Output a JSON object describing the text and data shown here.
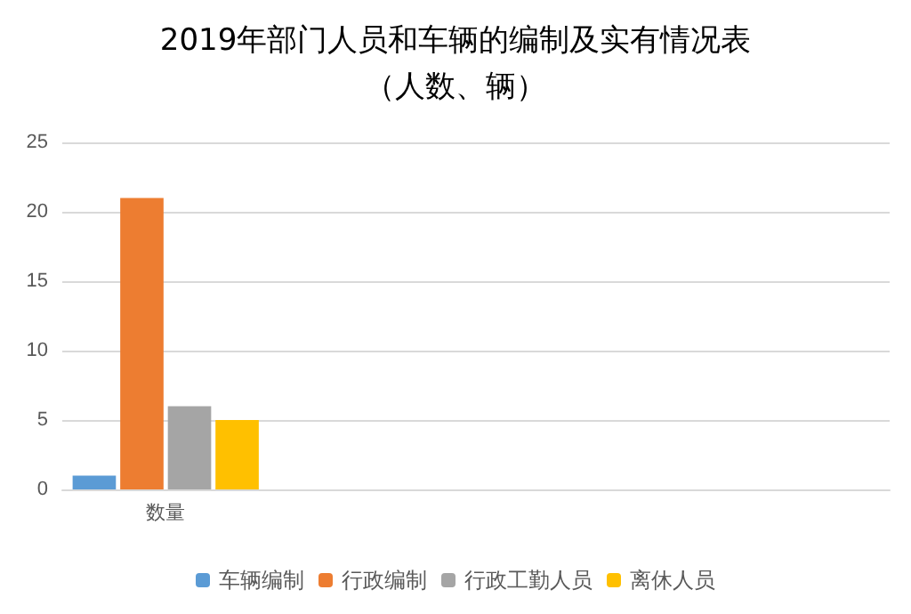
{
  "chart_data": {
    "type": "bar",
    "title": "2019年部门人员和车辆的编制及实有情况表",
    "subtitle": "（人数、辆）",
    "categories": [
      "数量",
      null,
      null,
      null
    ],
    "series": [
      {
        "name": "车辆编制",
        "color": "#5b9bd5",
        "values": [
          1,
          null,
          null,
          null
        ]
      },
      {
        "name": "行政编制",
        "color": "#ed7d31",
        "values": [
          21,
          null,
          null,
          null
        ]
      },
      {
        "name": "行政工勤人员",
        "color": "#a5a5a5",
        "values": [
          6,
          null,
          null,
          null
        ]
      },
      {
        "name": "离休人员",
        "color": "#ffc000",
        "values": [
          5,
          null,
          null,
          null
        ]
      }
    ],
    "ylim": [
      0,
      25
    ],
    "yticks": [
      0,
      5,
      10,
      15,
      20,
      25
    ],
    "grid": "y",
    "legend": "bottom"
  }
}
